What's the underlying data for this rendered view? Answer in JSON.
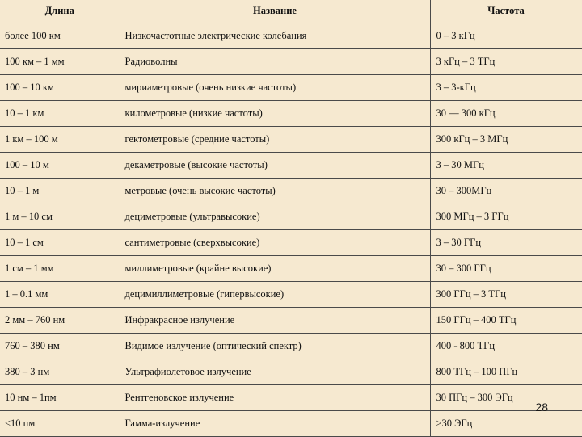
{
  "table": {
    "headers": [
      "Длина",
      "Название",
      "Частота"
    ],
    "rows": [
      [
        "более 100 км",
        "Низкочастотные электрические колебания",
        "0 – 3 кГц"
      ],
      [
        "100 км – 1 мм",
        "Радиоволны",
        "3 кГц – 3 ТГц"
      ],
      [
        "100 – 10 км",
        "мириаметровые (очень низкие частоты)",
        "3 – 3-кГц"
      ],
      [
        "10 – 1 км",
        "километровые (низкие частоты)",
        "30 — 300 кГц"
      ],
      [
        "1 км – 100 м",
        "гектометровые (средние частоты)",
        "300 кГц – 3 МГц"
      ],
      [
        "100 – 10 м",
        "декаметровые (высокие частоты)",
        "3 – 30 МГц"
      ],
      [
        "10 – 1 м",
        "метровые (очень высокие частоты)",
        "30 – 300МГц"
      ],
      [
        "1 м – 10 см",
        "дециметровые (ультравысокие)",
        "300 МГц – 3 ГГц"
      ],
      [
        "10 – 1 см",
        "сантиметровые (сверхвысокие)",
        "3 – 30 ГГц"
      ],
      [
        "1 см – 1 мм",
        "миллиметровые (крайне высокие)",
        "30 – 300 ГГц"
      ],
      [
        "1 – 0.1 мм",
        "децимиллиметровые (гипервысокие)",
        "300 ГГц – 3 ТГц"
      ],
      [
        "2 мм – 760 нм",
        "Инфракрасное излучение",
        "150 ГГц – 400 ТГц"
      ],
      [
        "760 – 380 нм",
        "Видимое излучение (оптический спектр)",
        "400 - 800 ТГц"
      ],
      [
        "380 – 3 нм",
        "Ультрафиолетовое излучение",
        "800 ТГц – 100 ПГц"
      ],
      [
        "10 нм – 1пм",
        "Рентгеновское излучение",
        "30 ПГц – 300 ЭГц"
      ],
      [
        "<10 пм",
        "Гамма-излучение",
        ">30 ЭГц"
      ]
    ]
  },
  "page_number": "28",
  "colors": {
    "background": "#f6e9d0",
    "border": "#4a4a4a",
    "text": "#111111"
  }
}
